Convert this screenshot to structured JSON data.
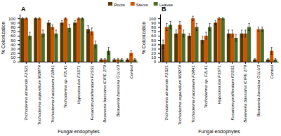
{
  "chart_data": [
    {
      "type": "bar",
      "title": "A",
      "categories": [
        "Trichoderma atroviride F2S21",
        "Trichoderma asperellum M2RT4",
        "Trichoderma harzianum F2R41",
        "Trichoderma sp. F2L41",
        "Hypocrea lixii F3ST1",
        "Fusarium proliferatum F2SS1",
        "Beauveria bassiana ICIPE 279",
        "Beauveria bassiana G1LU3",
        "Control"
      ],
      "series": [
        {
          "name": "Roots",
          "color": "#5B3A00",
          "values": [
            100,
            100,
            90,
            90,
            90,
            75,
            5,
            5,
            5
          ],
          "errors": [
            2,
            2,
            5,
            5,
            5,
            8,
            2,
            2,
            2
          ]
        },
        {
          "name": "Stems",
          "color": "#CC5500",
          "values": [
            100,
            100,
            80,
            100,
            100,
            70,
            5,
            5,
            20
          ],
          "errors": [
            2,
            2,
            5,
            2,
            2,
            8,
            2,
            2,
            5
          ]
        },
        {
          "name": "Leaves",
          "color": "#4B6E2A",
          "values": [
            60,
            65,
            65,
            78,
            100,
            40,
            25,
            5,
            5
          ],
          "errors": [
            8,
            8,
            8,
            8,
            2,
            8,
            8,
            2,
            2
          ]
        }
      ],
      "x_label": "Fungal endophytes",
      "y_label": "% Colonization",
      "ylim": [
        0,
        110
      ],
      "yticks": [
        0,
        10,
        20,
        30,
        40,
        50,
        60,
        70,
        80,
        90,
        100
      ],
      "grid": false
    },
    {
      "type": "bar",
      "title": "B",
      "categories": [
        "Trichoderma atroviride F2S21",
        "Trichoderma asperellum M2RT4",
        "Trichoderma harzianum F2R41",
        "Trichoderma sp. F2L41",
        "Hypocrea lixii F3ST1",
        "Fusarium proliferatum F2SS1",
        "Beauveria bassiana ICIPE 279",
        "Beauveria bassiana G1LU3",
        "Control"
      ],
      "series": [
        {
          "name": "Roots",
          "color": "#5B3A00",
          "values": [
            40,
            65,
            60,
            50,
            90,
            65,
            65,
            5,
            5
          ],
          "errors": [
            10,
            8,
            5,
            8,
            5,
            8,
            8,
            2,
            2
          ]
        },
        {
          "name": "Stems",
          "color": "#CC5500",
          "values": [
            80,
            85,
            100,
            60,
            100,
            65,
            65,
            75,
            25
          ],
          "errors": [
            8,
            8,
            5,
            8,
            2,
            8,
            8,
            5,
            8
          ]
        },
        {
          "name": "Leaves",
          "color": "#4B6E2A",
          "values": [
            85,
            65,
            80,
            80,
            100,
            55,
            80,
            75,
            5
          ],
          "errors": [
            8,
            8,
            8,
            8,
            2,
            8,
            8,
            5,
            2
          ]
        }
      ],
      "x_label": "Fungal endophytes",
      "y_label": "% Colonization",
      "ylim": [
        0,
        110
      ],
      "yticks": [
        0,
        10,
        20,
        30,
        40,
        50,
        60,
        70,
        80,
        90,
        100
      ],
      "grid": false
    }
  ]
}
